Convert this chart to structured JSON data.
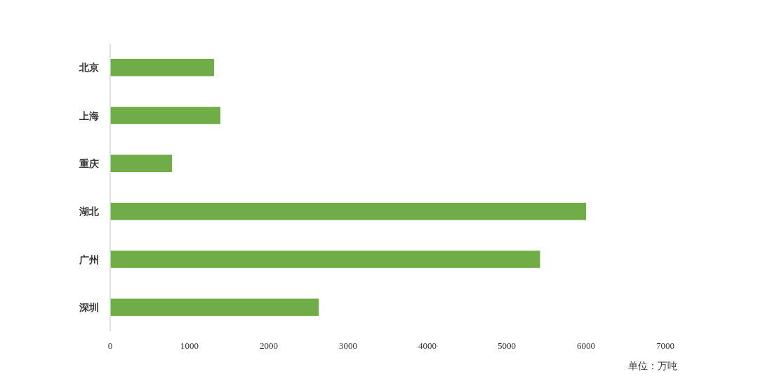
{
  "chart_data": {
    "type": "bar",
    "orientation": "horizontal",
    "categories": [
      "北京",
      "上海",
      "重庆",
      "湖北",
      "广州",
      "深圳"
    ],
    "values": [
      1310,
      1390,
      780,
      6000,
      5420,
      2630
    ],
    "color": "#70ad47",
    "xlim": [
      0,
      7000
    ],
    "xticks": [
      0,
      1000,
      2000,
      3000,
      4000,
      5000,
      6000,
      7000
    ],
    "grid": false,
    "annotations": [
      "单位：万吨"
    ]
  }
}
